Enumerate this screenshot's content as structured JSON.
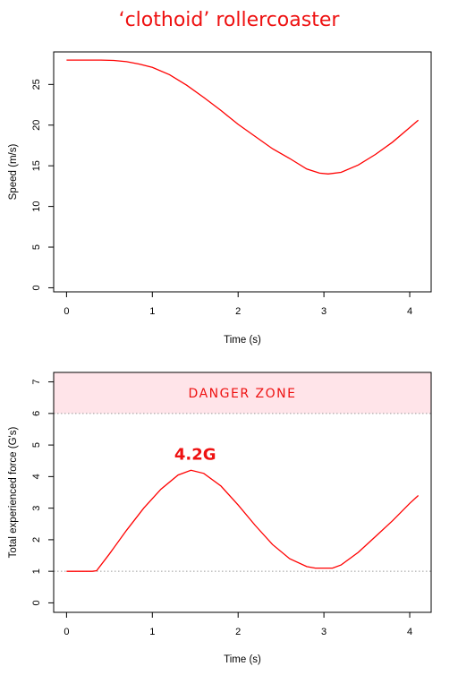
{
  "title": "‘clothoid’ rollercoaster",
  "colors": {
    "curve": "#ff0000",
    "title": "#ee1111",
    "danger_fill": "#ffe4e9",
    "danger_text": "#ee1111",
    "reference_line": "#9a9a9a"
  },
  "chart_data": [
    {
      "type": "line",
      "title": "",
      "xlabel": "Time (s)",
      "ylabel": "Speed (m/s)",
      "xlim": [
        -0.15,
        4.25
      ],
      "ylim": [
        -0.5,
        29
      ],
      "x_ticks": [
        0,
        1,
        2,
        3,
        4
      ],
      "y_ticks": [
        0,
        5,
        10,
        15,
        20,
        25
      ],
      "grid": false,
      "series": [
        {
          "name": "",
          "x": [
            0,
            0.2,
            0.4,
            0.55,
            0.7,
            0.85,
            1.0,
            1.2,
            1.4,
            1.6,
            1.8,
            2.0,
            2.2,
            2.4,
            2.6,
            2.8,
            2.95,
            3.05,
            3.2,
            3.4,
            3.6,
            3.8,
            4.0,
            4.1
          ],
          "y": [
            28.0,
            28.0,
            28.0,
            27.95,
            27.8,
            27.5,
            27.1,
            26.2,
            24.9,
            23.4,
            21.8,
            20.1,
            18.6,
            17.1,
            15.9,
            14.6,
            14.1,
            14.0,
            14.2,
            15.1,
            16.4,
            17.9,
            19.7,
            20.6
          ]
        }
      ]
    },
    {
      "type": "line",
      "title": "",
      "xlabel": "Time (s)",
      "ylabel": "Total experienced force (G's)",
      "xlim": [
        -0.15,
        4.25
      ],
      "ylim": [
        -0.3,
        7.3
      ],
      "x_ticks": [
        0,
        1,
        2,
        3,
        4
      ],
      "y_ticks": [
        0,
        1,
        2,
        3,
        4,
        5,
        6,
        7
      ],
      "grid": false,
      "reference_lines": [
        1,
        6
      ],
      "danger_zone": {
        "from": 6,
        "label": "DANGER ZONE"
      },
      "annotation": {
        "text": "4.2G",
        "x": 1.5,
        "y": 4.7
      },
      "series": [
        {
          "name": "",
          "x": [
            0,
            0.15,
            0.3,
            0.35,
            0.5,
            0.7,
            0.9,
            1.1,
            1.3,
            1.45,
            1.6,
            1.8,
            2.0,
            2.2,
            2.4,
            2.6,
            2.8,
            2.9,
            3.0,
            3.1,
            3.2,
            3.4,
            3.6,
            3.8,
            4.0,
            4.1
          ],
          "y": [
            1.0,
            1.0,
            1.0,
            1.02,
            1.55,
            2.3,
            3.0,
            3.6,
            4.05,
            4.2,
            4.1,
            3.7,
            3.1,
            2.45,
            1.85,
            1.4,
            1.15,
            1.1,
            1.1,
            1.1,
            1.2,
            1.6,
            2.1,
            2.6,
            3.15,
            3.4
          ]
        }
      ]
    }
  ]
}
